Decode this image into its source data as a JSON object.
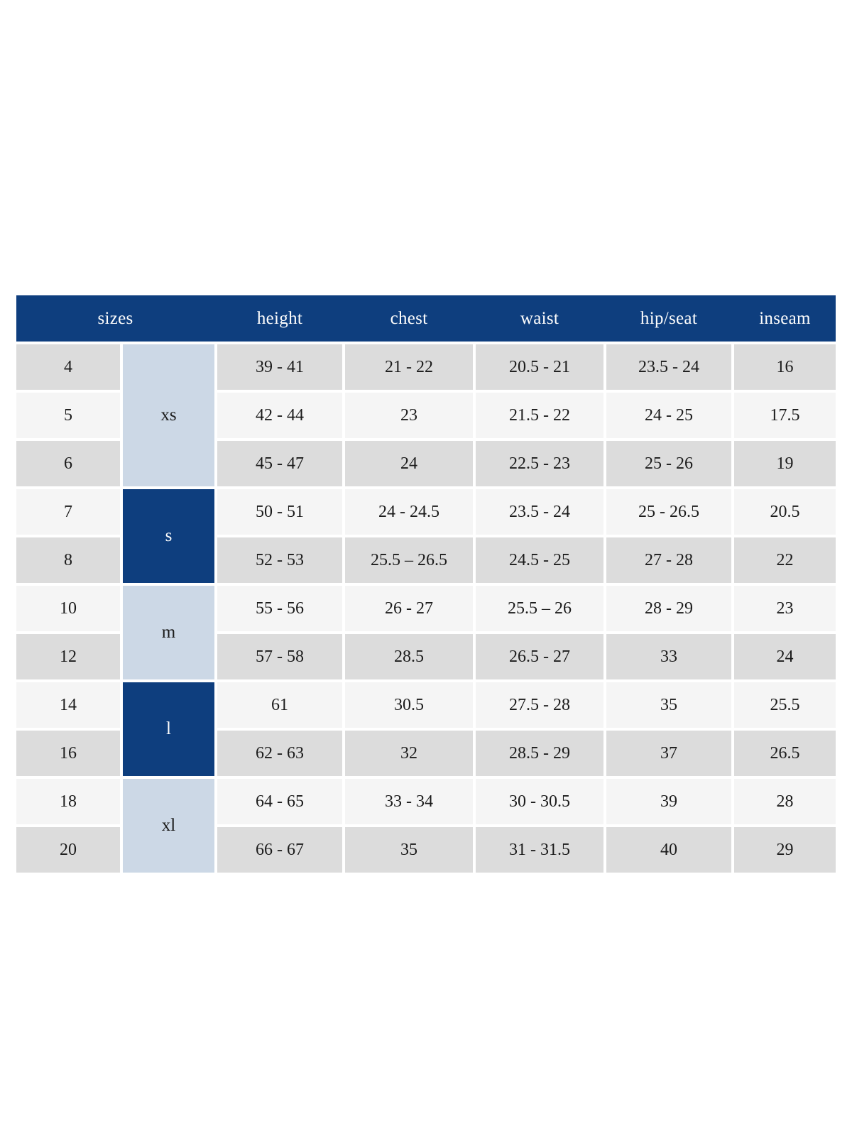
{
  "table": {
    "columns": [
      "sizes",
      "height",
      "chest",
      "waist",
      "hip/seat",
      "inseam"
    ],
    "colors": {
      "header_bg": "#0e3e7e",
      "header_text": "#fdfdfd",
      "row_gray": "#dcdcdc",
      "row_light": "#f5f5f5",
      "group_light_blue": "#ccd8e6",
      "group_navy": "#0e3e7e",
      "body_text": "#1b1b1b"
    },
    "size_groups": [
      {
        "label": "xs",
        "rows": 3,
        "variant": "light"
      },
      {
        "label": "s",
        "rows": 2,
        "variant": "dark"
      },
      {
        "label": "m",
        "rows": 2,
        "variant": "light"
      },
      {
        "label": "l",
        "rows": 2,
        "variant": "dark"
      },
      {
        "label": "xl",
        "rows": 2,
        "variant": "light"
      }
    ],
    "rows": [
      {
        "size": "4",
        "height": "39 - 41",
        "chest": "21 - 22",
        "waist": "20.5 - 21",
        "hip_seat": "23.5 - 24",
        "inseam": "16"
      },
      {
        "size": "5",
        "height": "42 - 44",
        "chest": "23",
        "waist": "21.5 - 22",
        "hip_seat": "24 - 25",
        "inseam": "17.5"
      },
      {
        "size": "6",
        "height": "45 - 47",
        "chest": "24",
        "waist": "22.5 - 23",
        "hip_seat": "25 - 26",
        "inseam": "19"
      },
      {
        "size": "7",
        "height": "50 - 51",
        "chest": "24 - 24.5",
        "waist": "23.5 - 24",
        "hip_seat": "25 - 26.5",
        "inseam": "20.5"
      },
      {
        "size": "8",
        "height": "52 - 53",
        "chest": "25.5 – 26.5",
        "waist": "24.5 - 25",
        "hip_seat": "27 - 28",
        "inseam": "22"
      },
      {
        "size": "10",
        "height": "55 - 56",
        "chest": "26 - 27",
        "waist": "25.5 – 26",
        "hip_seat": "28 - 29",
        "inseam": "23"
      },
      {
        "size": "12",
        "height": "57 - 58",
        "chest": "28.5",
        "waist": "26.5 - 27",
        "hip_seat": "33",
        "inseam": "24"
      },
      {
        "size": "14",
        "height": "61",
        "chest": "30.5",
        "waist": "27.5 - 28",
        "hip_seat": "35",
        "inseam": "25.5"
      },
      {
        "size": "16",
        "height": "62 - 63",
        "chest": "32",
        "waist": "28.5 - 29",
        "hip_seat": "37",
        "inseam": "26.5"
      },
      {
        "size": "18",
        "height": "64 - 65",
        "chest": "33 - 34",
        "waist": "30 - 30.5",
        "hip_seat": "39",
        "inseam": "28"
      },
      {
        "size": "20",
        "height": "66 - 67",
        "chest": "35",
        "waist": "31 - 31.5",
        "hip_seat": "40",
        "inseam": "29"
      }
    ]
  }
}
